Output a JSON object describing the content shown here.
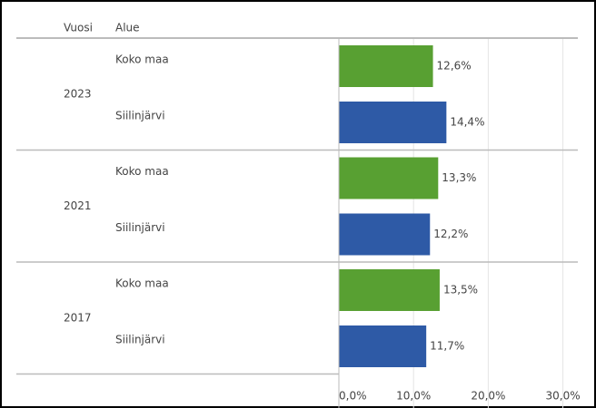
{
  "chart_data": {
    "type": "bar",
    "orientation": "horizontal",
    "row_headers": [
      "Vuosi",
      "Alue"
    ],
    "categories": [
      "2023",
      "2021",
      "2017"
    ],
    "series": [
      {
        "name": "Koko maa",
        "color": "#58a032",
        "values": [
          12.6,
          13.3,
          13.5
        ],
        "value_labels": [
          "12,6%",
          "13,3%",
          "13,5%"
        ]
      },
      {
        "name": "Siilinjärvi",
        "color": "#2e5aa6",
        "values": [
          14.4,
          12.2,
          11.7
        ],
        "value_labels": [
          "14,4%",
          "12,2%",
          "11,7%"
        ]
      }
    ],
    "xlim": [
      0,
      32
    ],
    "xticks": [
      {
        "value": 0,
        "label": "0,0%"
      },
      {
        "value": 10,
        "label": "10,0%"
      },
      {
        "value": 20,
        "label": "20,0%"
      },
      {
        "value": 30,
        "label": "30,0%"
      }
    ],
    "grid": true
  }
}
